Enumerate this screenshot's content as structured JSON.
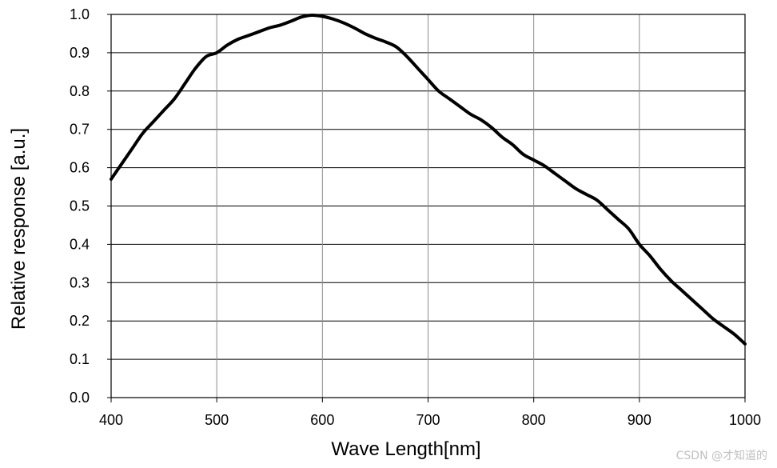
{
  "chart_data": {
    "type": "line",
    "title": "",
    "xlabel": "Wave Length[nm]",
    "ylabel": "Relative response [a.u.]",
    "xlim": [
      400,
      1000
    ],
    "ylim": [
      0,
      1
    ],
    "x_ticks": [
      "400",
      "500",
      "600",
      "700",
      "800",
      "900",
      "1000"
    ],
    "y_ticks": [
      "0.0",
      "0.1",
      "0.2",
      "0.3",
      "0.4",
      "0.5",
      "0.6",
      "0.7",
      "0.8",
      "0.9",
      "1.0"
    ],
    "grid": true,
    "legend": "none",
    "line_color": "#000000",
    "series": [
      {
        "x": [
          400,
          410,
          420,
          430,
          440,
          450,
          460,
          470,
          480,
          490,
          500,
          510,
          520,
          530,
          540,
          550,
          560,
          570,
          580,
          590,
          600,
          610,
          620,
          630,
          640,
          650,
          660,
          670,
          680,
          690,
          700,
          710,
          720,
          730,
          740,
          750,
          760,
          770,
          780,
          790,
          800,
          810,
          820,
          830,
          840,
          850,
          860,
          870,
          880,
          890,
          900,
          910,
          920,
          930,
          940,
          950,
          960,
          970,
          980,
          990,
          1000
        ],
        "y": [
          0.57,
          0.61,
          0.65,
          0.69,
          0.72,
          0.75,
          0.78,
          0.82,
          0.86,
          0.89,
          0.9,
          0.92,
          0.935,
          0.945,
          0.955,
          0.965,
          0.972,
          0.982,
          0.993,
          0.998,
          0.995,
          0.988,
          0.978,
          0.965,
          0.95,
          0.938,
          0.928,
          0.915,
          0.89,
          0.86,
          0.83,
          0.8,
          0.78,
          0.76,
          0.74,
          0.725,
          0.705,
          0.68,
          0.66,
          0.635,
          0.62,
          0.605,
          0.585,
          0.565,
          0.545,
          0.53,
          0.515,
          0.49,
          0.465,
          0.44,
          0.4,
          0.37,
          0.335,
          0.305,
          0.28,
          0.255,
          0.23,
          0.205,
          0.185,
          0.165,
          0.14
        ]
      }
    ]
  },
  "watermark": "CSDN @才知道的"
}
